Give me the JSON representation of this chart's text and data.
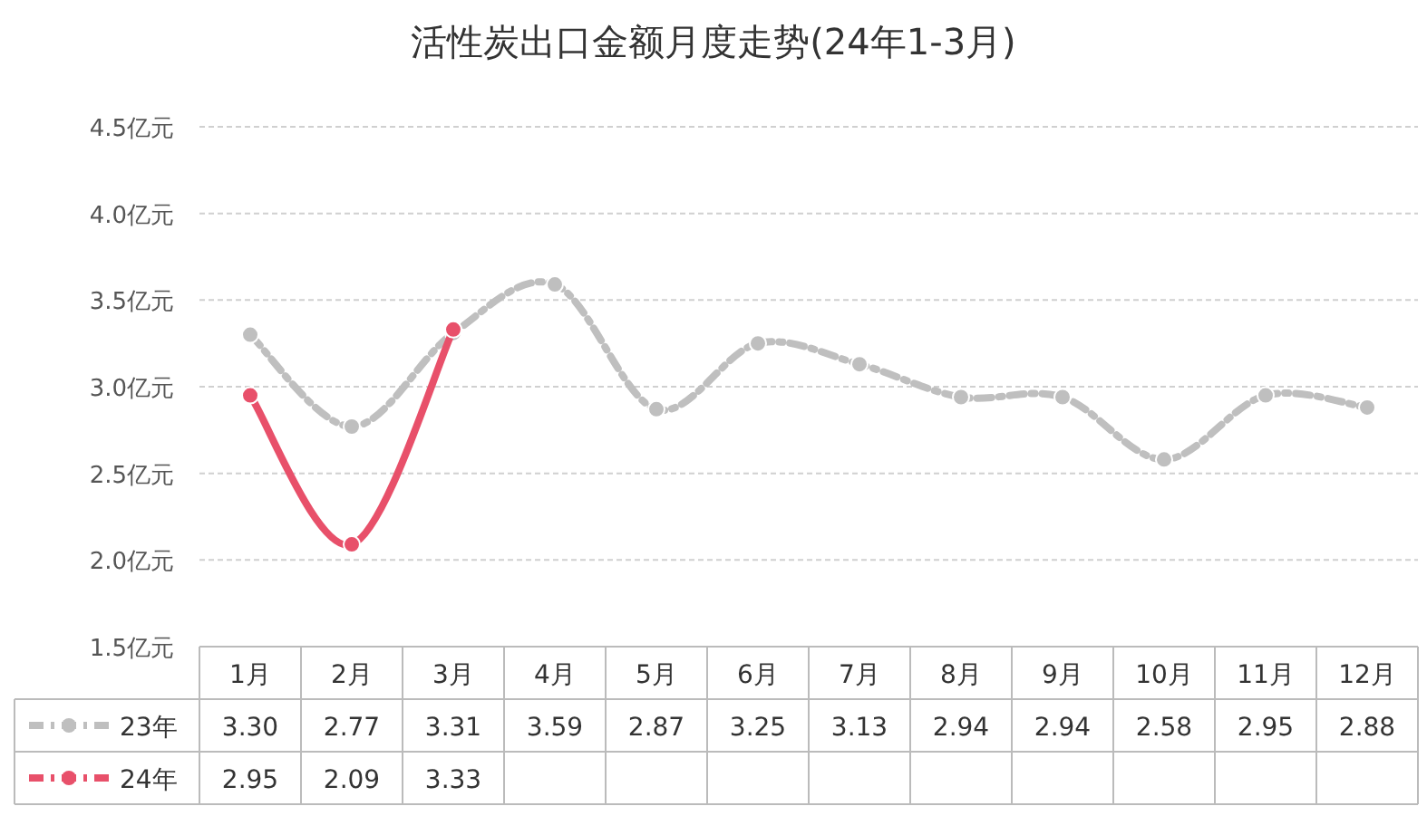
{
  "chart_data": {
    "type": "line",
    "title": "活性炭出口金额月度走势(24年1-3月)",
    "categories": [
      "1月",
      "2月",
      "3月",
      "4月",
      "5月",
      "6月",
      "7月",
      "8月",
      "9月",
      "10月",
      "11月",
      "12月"
    ],
    "series": [
      {
        "name": "23年",
        "color": "#bfbfbf",
        "line_style": "dashed",
        "values": [
          3.3,
          2.77,
          3.31,
          3.59,
          2.87,
          3.25,
          3.13,
          2.94,
          2.94,
          2.58,
          2.95,
          2.88
        ],
        "value_labels": [
          "3.30",
          "2.77",
          "3.31",
          "3.59",
          "2.87",
          "3.25",
          "3.13",
          "2.94",
          "2.94",
          "2.58",
          "2.95",
          "2.88"
        ]
      },
      {
        "name": "24年",
        "color": "#e8506a",
        "line_style": "solid",
        "values": [
          2.95,
          2.09,
          3.33,
          null,
          null,
          null,
          null,
          null,
          null,
          null,
          null,
          null
        ],
        "value_labels": [
          "2.95",
          "2.09",
          "3.33",
          null,
          null,
          null,
          null,
          null,
          null,
          null,
          null,
          null
        ]
      }
    ],
    "ylim": [
      1.5,
      4.5
    ],
    "yticks": [
      {
        "value": 1.5,
        "label": "1.5亿元"
      },
      {
        "value": 2.0,
        "label": "2.0亿元"
      },
      {
        "value": 2.5,
        "label": "2.5亿元"
      },
      {
        "value": 3.0,
        "label": "3.0亿元"
      },
      {
        "value": 3.5,
        "label": "3.5亿元"
      },
      {
        "value": 4.0,
        "label": "4.0亿元"
      },
      {
        "value": 4.5,
        "label": "4.5亿元"
      }
    ],
    "grid": "y",
    "legend": "bottom",
    "marker": "circle"
  }
}
